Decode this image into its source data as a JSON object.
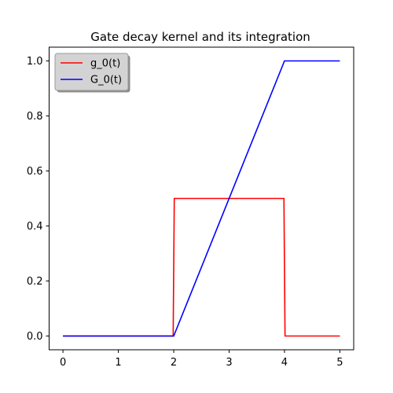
{
  "chart_data": {
    "type": "line",
    "title": "Gate decay kernel and its integration",
    "xlabel": "",
    "ylabel": "",
    "xlim": [
      -0.25,
      5.25
    ],
    "ylim": [
      -0.05,
      1.05
    ],
    "xticks": [
      0,
      1,
      2,
      3,
      4,
      5
    ],
    "xtick_labels": [
      "0",
      "1",
      "2",
      "3",
      "4",
      "5"
    ],
    "yticks": [
      0.0,
      0.2,
      0.4,
      0.6,
      0.8,
      1.0
    ],
    "ytick_labels": [
      "0.0",
      "0.2",
      "0.4",
      "0.6",
      "0.8",
      "1.0"
    ],
    "grid": false,
    "legend_position": "top-left",
    "series": [
      {
        "name": "g_0(t)",
        "color": "#ff0000",
        "x": [
          0,
          1.99,
          2.01,
          3.99,
          4.01,
          5
        ],
        "y": [
          0,
          0,
          0.5,
          0.5,
          0,
          0
        ]
      },
      {
        "name": "G_0(t)",
        "color": "#0000ff",
        "x": [
          0,
          2,
          4,
          5
        ],
        "y": [
          0,
          0,
          1,
          1
        ]
      }
    ]
  }
}
